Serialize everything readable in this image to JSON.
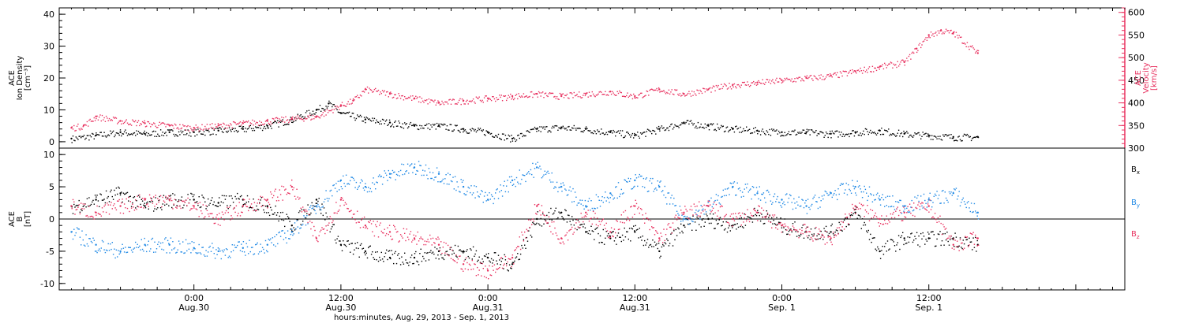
{
  "chart_data": [
    {
      "type": "scatter",
      "panel": "top",
      "left_axis": {
        "label_lines": [
          "ACE",
          "Ion Density",
          "[cm⁻³]"
        ],
        "ylim": [
          -2,
          42
        ],
        "ticks": [
          "0",
          "10",
          "20",
          "30",
          "40"
        ],
        "color": "#000000"
      },
      "right_axis": {
        "label_lines": [
          "ACE",
          "Velocity",
          "[km/s]"
        ],
        "ylim": [
          300,
          610
        ],
        "ticks": [
          "300",
          "350",
          "400",
          "450",
          "500",
          "550",
          "600"
        ],
        "color": "#e8315f"
      },
      "series": [
        {
          "axis": "left",
          "color": "#000000",
          "x": [
            -10,
            -8,
            -6,
            -4,
            -2,
            0,
            2,
            4,
            6,
            8,
            10,
            11,
            12,
            14,
            16,
            18,
            20,
            22,
            24,
            26,
            28,
            30,
            32,
            34,
            36,
            38,
            40,
            42,
            44,
            46,
            48,
            50,
            52,
            54,
            56,
            58,
            60,
            62,
            64
          ],
          "y": [
            1,
            2,
            3,
            2.5,
            3,
            3,
            3.5,
            4,
            5,
            7,
            10,
            12,
            9,
            7,
            6,
            5,
            5,
            4,
            3,
            1,
            4,
            4.5,
            4,
            3,
            2,
            4,
            6,
            5,
            4,
            3.5,
            3,
            3,
            2.5,
            3,
            3.5,
            2.5,
            2,
            1.5,
            1.5
          ]
        },
        {
          "axis": "right",
          "color": "#e8315f",
          "x": [
            -10,
            -9,
            -8,
            -6,
            -4,
            -2,
            0,
            2,
            4,
            6,
            8,
            10,
            12,
            13,
            14,
            16,
            18,
            20,
            22,
            24,
            26,
            28,
            30,
            32,
            34,
            36,
            38,
            40,
            42,
            44,
            46,
            48,
            50,
            52,
            54,
            56,
            58,
            59,
            60,
            61,
            62,
            64
          ],
          "y": [
            345,
            350,
            370,
            360,
            355,
            350,
            345,
            350,
            355,
            360,
            365,
            370,
            395,
            405,
            430,
            420,
            410,
            400,
            405,
            410,
            415,
            420,
            415,
            420,
            425,
            415,
            430,
            420,
            430,
            440,
            445,
            450,
            455,
            460,
            470,
            480,
            490,
            520,
            550,
            560,
            555,
            510
          ]
        }
      ]
    },
    {
      "type": "scatter",
      "panel": "bottom",
      "left_axis": {
        "label_lines": [
          "ACE",
          "B",
          "[nT]"
        ],
        "ylim": [
          -11,
          11
        ],
        "ticks": [
          "-10",
          "-5",
          "0",
          "5",
          "10"
        ]
      },
      "zero_line": true,
      "series": [
        {
          "name": "B_x",
          "label": "B",
          "subscript": "x",
          "color": "#000000",
          "x": [
            -10,
            -8,
            -6,
            -4,
            -2,
            0,
            2,
            4,
            6,
            8,
            10,
            12,
            14,
            16,
            18,
            20,
            22,
            24,
            26,
            28,
            30,
            32,
            34,
            36,
            38,
            40,
            42,
            44,
            46,
            48,
            50,
            52,
            54,
            56,
            58,
            60,
            62,
            64
          ],
          "y": [
            2,
            3,
            4,
            2,
            3,
            3,
            2.5,
            3,
            2,
            -1,
            3,
            -4,
            -5,
            -6,
            -6,
            -5,
            -5,
            -6,
            -7,
            0,
            1,
            -2,
            -3,
            -2,
            -5,
            -1,
            0,
            -1,
            1,
            -1,
            -2,
            -2,
            1,
            -5,
            -3,
            -3,
            -3,
            -4
          ]
        },
        {
          "name": "B_y",
          "label": "B",
          "subscript": "y",
          "color": "#1e88e5",
          "x": [
            -10,
            -8,
            -6,
            -4,
            -2,
            0,
            2,
            4,
            6,
            8,
            10,
            12,
            14,
            16,
            18,
            20,
            22,
            24,
            26,
            28,
            30,
            32,
            34,
            36,
            38,
            40,
            42,
            44,
            46,
            48,
            50,
            52,
            54,
            56,
            58,
            60,
            62,
            64
          ],
          "y": [
            -2,
            -4,
            -5,
            -4,
            -4,
            -4.5,
            -5,
            -4.5,
            -4,
            -2,
            2,
            6,
            5,
            7,
            8,
            7,
            5,
            3,
            6,
            8,
            5,
            2,
            4,
            6,
            5,
            0,
            2,
            5,
            4,
            3,
            2,
            4,
            5,
            3,
            2,
            3,
            4,
            1
          ]
        },
        {
          "name": "B_z",
          "label": "B",
          "subscript": "z",
          "color": "#e8315f",
          "x": [
            -10,
            -8,
            -6,
            -4,
            -2,
            0,
            2,
            4,
            6,
            8,
            10,
            12,
            14,
            16,
            18,
            20,
            22,
            24,
            26,
            28,
            30,
            32,
            34,
            36,
            38,
            40,
            42,
            44,
            46,
            48,
            50,
            52,
            54,
            56,
            58,
            60,
            62,
            64
          ],
          "y": [
            2,
            1,
            2,
            3,
            3,
            2,
            0,
            2,
            3,
            5,
            -3,
            3,
            -1,
            -2,
            -3,
            -4,
            -7,
            -8,
            -6,
            2,
            -3,
            1,
            -2,
            2,
            -3,
            1,
            2,
            0,
            1,
            -1,
            -2,
            -3,
            2,
            0,
            1,
            2,
            -4,
            -3
          ]
        }
      ]
    }
  ],
  "x_axis": {
    "xlim": [
      -11,
      76
    ],
    "ticks": [
      {
        "x": 0,
        "time": "0:00",
        "date": "Aug.30"
      },
      {
        "x": 12,
        "time": "12:00",
        "date": "Aug.30"
      },
      {
        "x": 24,
        "time": "0:00",
        "date": "Aug.31"
      },
      {
        "x": 36,
        "time": "12:00",
        "date": "Aug.31"
      },
      {
        "x": 48,
        "time": "0:00",
        "date": "Sep. 1"
      },
      {
        "x": 60,
        "time": "12:00",
        "date": "Sep. 1"
      }
    ],
    "label": "hours:minutes, Aug. 29, 2013 - Sep.  1, 2013"
  }
}
